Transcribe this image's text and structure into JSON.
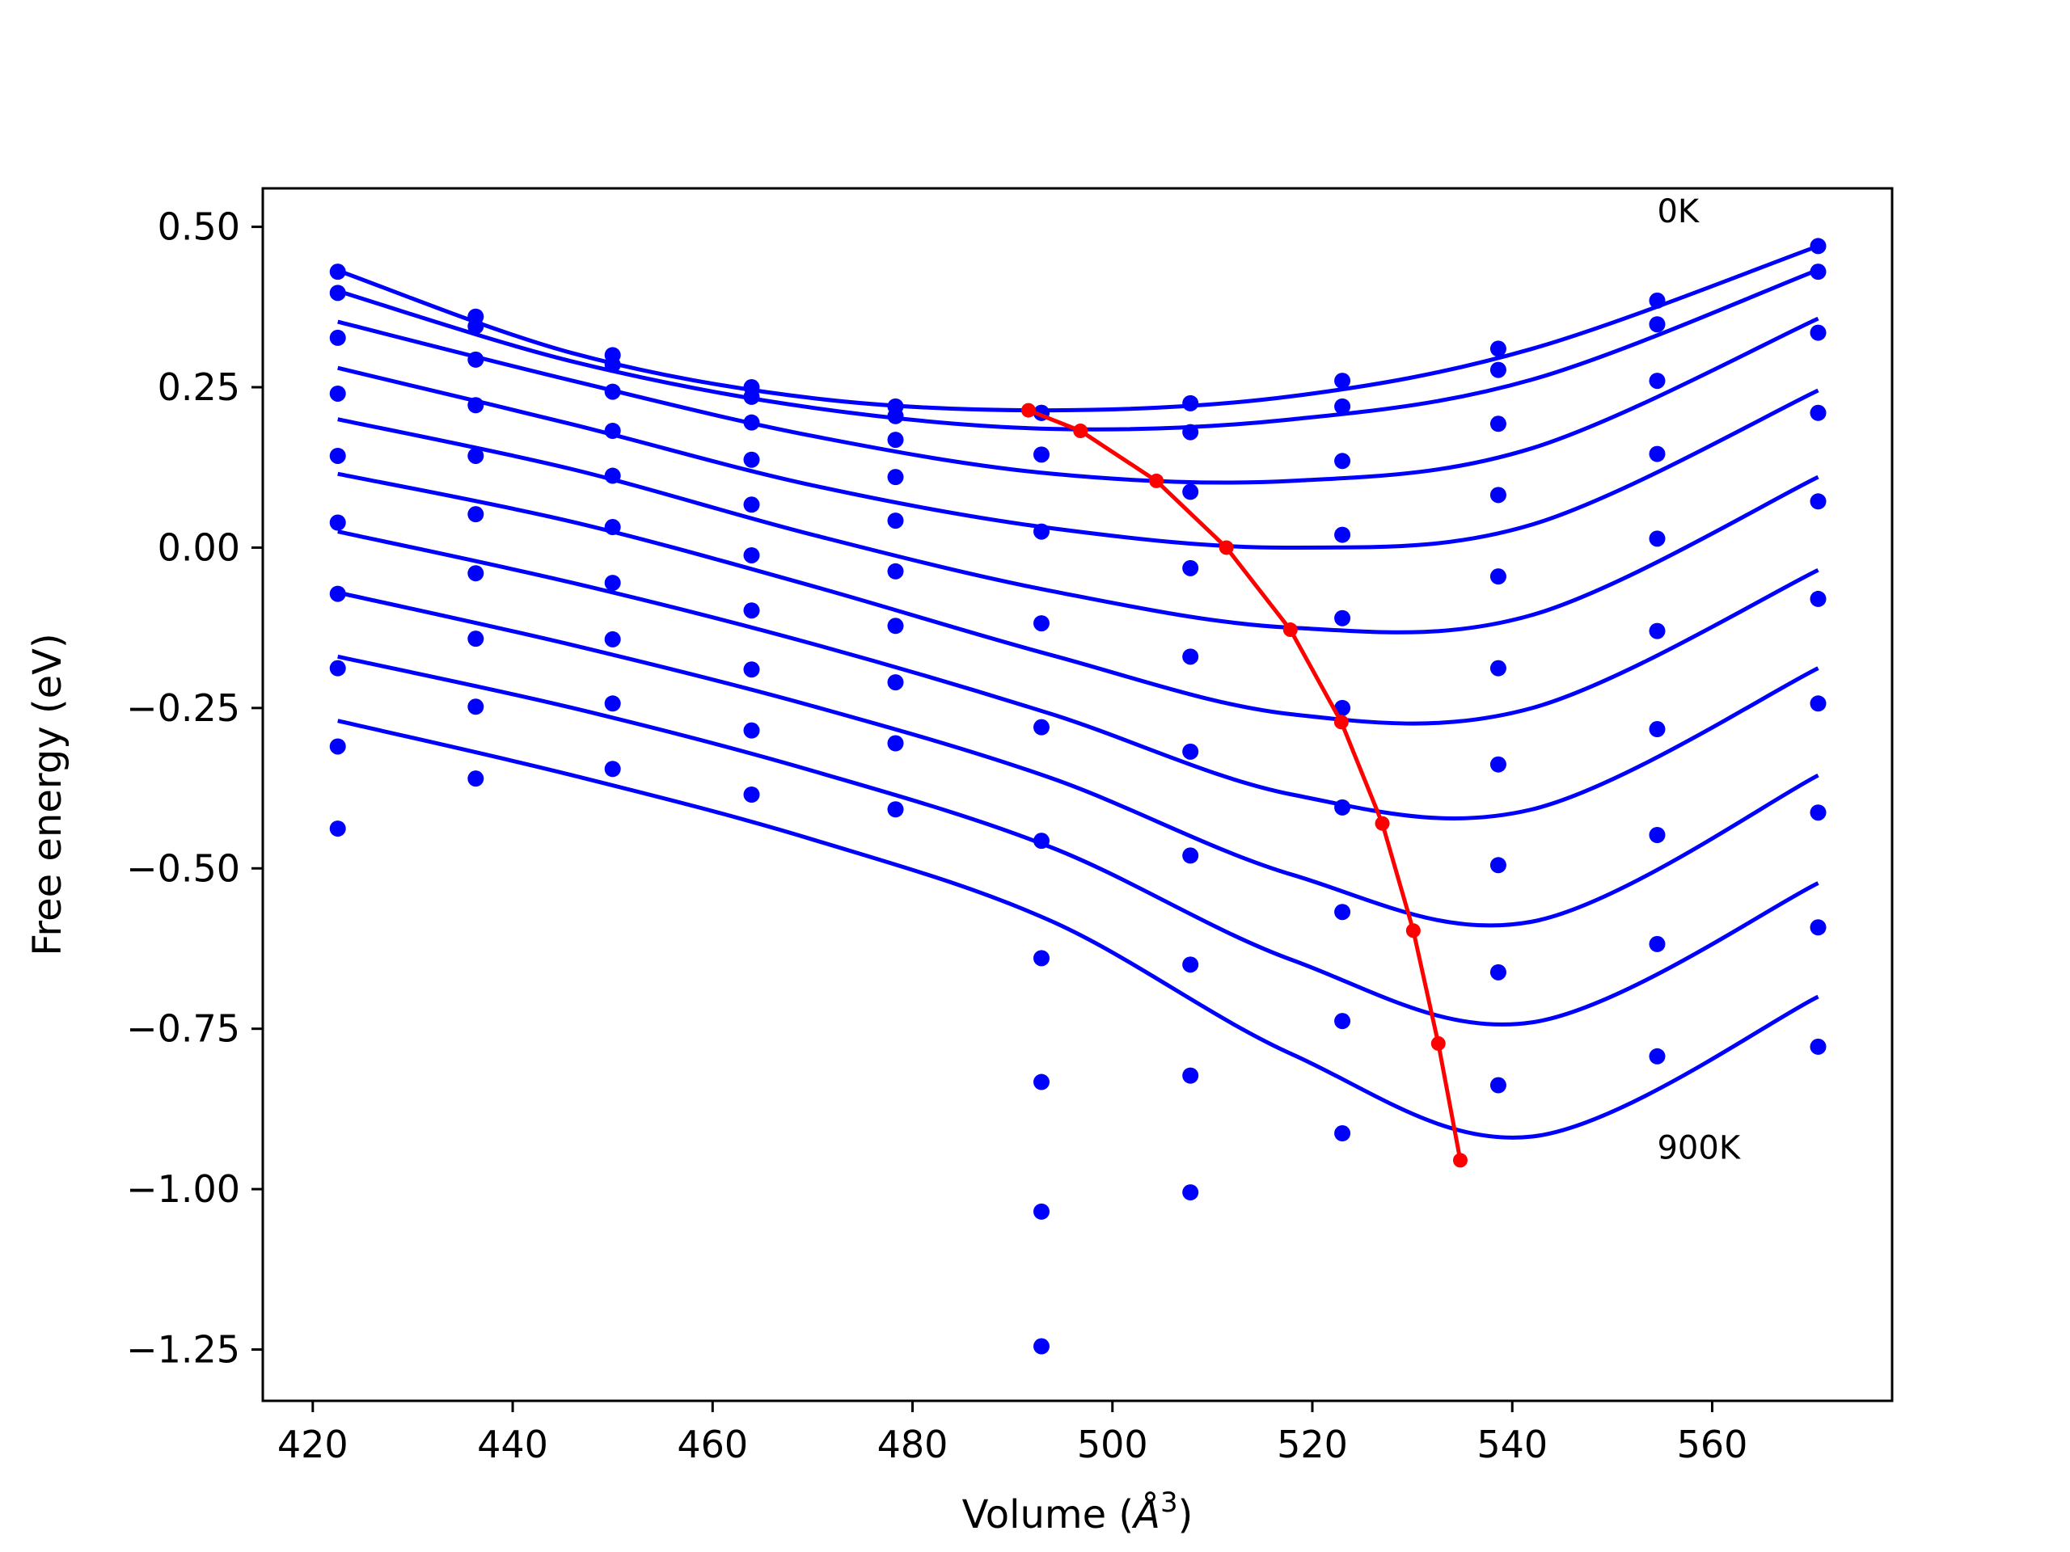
{
  "chart_data": {
    "type": "scatter",
    "xlabel_main": "Volume (",
    "xlabel_unit": "Å",
    "xlabel_sup": "3",
    "xlabel_end": ")",
    "ylabel": "Free energy (eV)",
    "xlim": [
      415,
      578
    ],
    "ylim": [
      -1.33,
      0.56
    ],
    "xticks": [
      420,
      440,
      460,
      480,
      500,
      520,
      540,
      560
    ],
    "xtick_labels": [
      "420",
      "440",
      "460",
      "480",
      "500",
      "520",
      "540",
      "560"
    ],
    "yticks": [
      0.5,
      0.25,
      0.0,
      -0.25,
      -0.5,
      -0.75,
      -1.0,
      -1.25
    ],
    "ytick_labels": [
      "0.50",
      "0.25",
      "0.00",
      "−0.25",
      "−0.50",
      "−0.75",
      "−1.00",
      "−1.25"
    ],
    "grid": false,
    "annotations": [
      {
        "text": "0K",
        "x": 554.5,
        "y": 0.525
      },
      {
        "text": "900K",
        "x": 554.5,
        "y": -0.935
      }
    ],
    "colors": {
      "points": "#0000ff",
      "fits": "#0000ff",
      "minimum_path": "#ff0000"
    },
    "volumes": [
      422.5,
      436.3,
      450.0,
      463.9,
      478.3,
      492.9,
      507.8,
      523.0,
      538.6,
      554.5,
      570.6
    ],
    "point_series": [
      {
        "values": [
          0.43,
          0.36,
          0.3,
          0.25,
          0.22,
          0.21,
          0.225,
          0.26,
          0.31,
          0.385,
          0.47
        ]
      },
      {
        "values": [
          0.397,
          0.345,
          0.285,
          0.235,
          0.205,
          0.21,
          0.18,
          0.22,
          0.277,
          0.348,
          0.43
        ]
      },
      {
        "values": [
          0.327,
          0.293,
          0.243,
          0.195,
          0.168,
          0.145,
          0.087,
          0.135,
          0.193,
          0.26,
          0.335
        ]
      },
      {
        "values": [
          0.24,
          0.222,
          0.182,
          0.137,
          0.11,
          0.025,
          -0.032,
          0.02,
          0.082,
          0.146,
          0.21
        ]
      },
      {
        "values": [
          0.143,
          0.143,
          0.112,
          0.067,
          0.042,
          -0.118,
          -0.17,
          -0.11,
          -0.045,
          0.014,
          0.072
        ]
      },
      {
        "values": [
          0.039,
          0.052,
          0.032,
          -0.012,
          -0.037,
          -0.28,
          -0.318,
          -0.25,
          -0.188,
          -0.13,
          -0.08
        ]
      },
      {
        "values": [
          -0.072,
          -0.04,
          -0.055,
          -0.098,
          -0.122,
          -0.457,
          -0.48,
          -0.405,
          -0.338,
          -0.283,
          -0.243
        ]
      },
      {
        "values": [
          -0.188,
          -0.142,
          -0.143,
          -0.19,
          -0.21,
          -0.64,
          -0.65,
          -0.568,
          -0.495,
          -0.448,
          -0.413
        ]
      },
      {
        "values": [
          -0.31,
          -0.248,
          -0.243,
          -0.285,
          -0.305,
          -0.833,
          -0.823,
          -0.738,
          -0.662,
          -0.618,
          -0.592
        ]
      },
      {
        "values": [
          -0.438,
          -0.36,
          -0.345,
          -0.385,
          -0.408,
          -1.035,
          -1.005,
          -0.913,
          -0.838,
          -0.793,
          -0.778
        ]
      },
      {
        "values": [
          null,
          null,
          null,
          null,
          null,
          -1.245,
          null,
          null,
          null,
          null,
          null
        ]
      }
    ],
    "fit_curves": [
      {
        "x": [
          422.5,
          446,
          470,
          494,
          518,
          542,
          570.6
        ],
        "y": [
          0.432,
          0.303,
          0.233,
          0.214,
          0.236,
          0.31,
          0.47
        ]
      },
      {
        "x": [
          422.5,
          446,
          470,
          494,
          518,
          542,
          570.6
        ],
        "y": [
          0.4,
          0.29,
          0.218,
          0.185,
          0.2,
          0.262,
          0.433
        ]
      },
      {
        "x": [
          422.5,
          446,
          470,
          494,
          518,
          542,
          570.6
        ],
        "y": [
          0.352,
          0.26,
          0.174,
          0.115,
          0.104,
          0.155,
          0.357
        ]
      },
      {
        "x": [
          422.5,
          446,
          470,
          494,
          518,
          542,
          570.6
        ],
        "y": [
          0.28,
          0.192,
          0.097,
          0.03,
          0.0,
          0.036,
          0.245
        ]
      },
      {
        "x": [
          422.5,
          446,
          470,
          494,
          518,
          542,
          570.6
        ],
        "y": [
          0.2,
          0.122,
          0.02,
          -0.068,
          -0.125,
          -0.105,
          0.11
        ]
      },
      {
        "x": [
          422.5,
          446,
          470,
          494,
          518,
          542,
          570.6
        ],
        "y": [
          0.115,
          0.04,
          -0.06,
          -0.168,
          -0.26,
          -0.25,
          -0.035
        ]
      },
      {
        "x": [
          422.5,
          446,
          470,
          494,
          518,
          542,
          570.6
        ],
        "y": [
          0.025,
          -0.055,
          -0.15,
          -0.26,
          -0.385,
          -0.408,
          -0.188
        ]
      },
      {
        "x": [
          422.5,
          446,
          470,
          494,
          518,
          542,
          570.6
        ],
        "y": [
          -0.07,
          -0.152,
          -0.247,
          -0.36,
          -0.51,
          -0.583,
          -0.355
        ]
      },
      {
        "x": [
          422.5,
          446,
          470,
          494,
          518,
          542,
          570.6
        ],
        "y": [
          -0.17,
          -0.25,
          -0.348,
          -0.468,
          -0.643,
          -0.74,
          -0.523
        ]
      },
      {
        "x": [
          422.5,
          446,
          470,
          494,
          518,
          542,
          570.6
        ],
        "y": [
          -0.27,
          -0.355,
          -0.455,
          -0.583,
          -0.79,
          -0.918,
          -0.7
        ]
      }
    ],
    "minimum_path": {
      "x": [
        491.6,
        496.8,
        504.4,
        511.4,
        517.8,
        522.9,
        527.0,
        530.1,
        532.6,
        534.8
      ],
      "y": [
        0.214,
        0.182,
        0.104,
        0.0,
        -0.128,
        -0.272,
        -0.43,
        -0.597,
        -0.773,
        -0.955
      ]
    }
  }
}
